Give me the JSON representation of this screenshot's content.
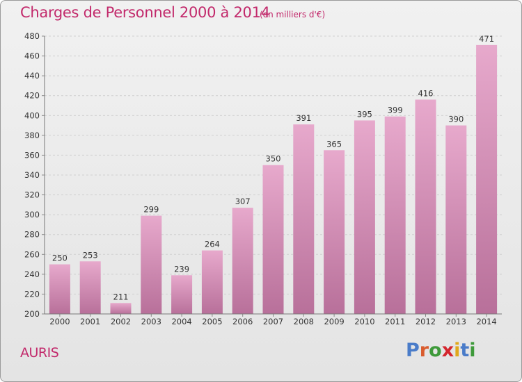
{
  "header": {
    "title": "Charges de Personnel 2000 à 2014",
    "unit": "(en milliers d'€)"
  },
  "footer": {
    "place": "AURIS",
    "logo": {
      "letters": [
        "P",
        "r",
        "o",
        "x",
        "i",
        "t",
        "i"
      ],
      "colors": [
        "#4a7cc9",
        "#d95c2e",
        "#3e9a3a",
        "#d4262e",
        "#e0a81c",
        "#4a7cc9",
        "#3e9a3a"
      ]
    }
  },
  "colors": {
    "bar_top": "#e7a9cc",
    "bar_bottom": "#b8709a",
    "accent": "#c2296b"
  },
  "chart_data": {
    "type": "bar",
    "categories": [
      "2000",
      "2001",
      "2002",
      "2003",
      "2004",
      "2005",
      "2006",
      "2007",
      "2008",
      "2009",
      "2010",
      "2011",
      "2012",
      "2013",
      "2014"
    ],
    "values": [
      250,
      253,
      211,
      299,
      239,
      264,
      307,
      350,
      391,
      365,
      395,
      399,
      416,
      390,
      471
    ],
    "title": "Charges de Personnel 2000 à 2014",
    "xlabel": "",
    "ylabel": "",
    "ylim": [
      200,
      480
    ],
    "yticks": [
      200,
      220,
      240,
      260,
      280,
      300,
      320,
      340,
      360,
      380,
      400,
      420,
      440,
      460,
      480
    ],
    "grid": true,
    "data_labels": true
  }
}
